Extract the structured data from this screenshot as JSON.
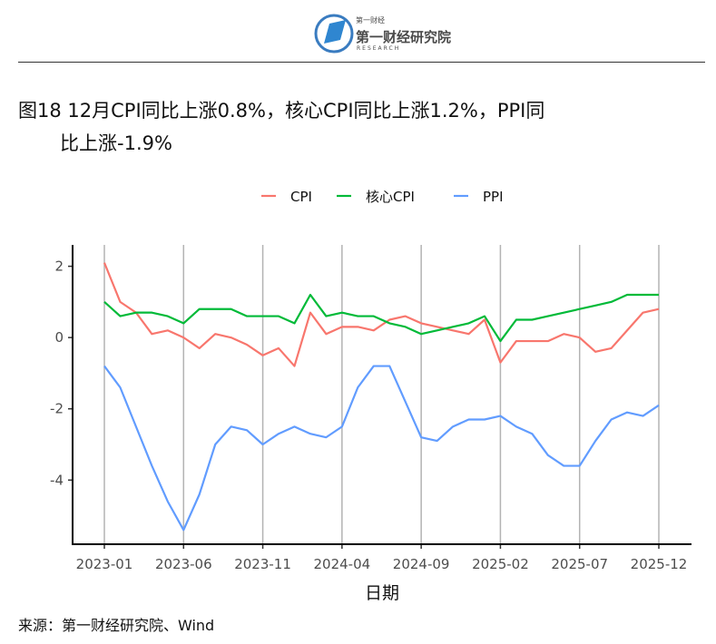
{
  "logo": {
    "name": "第一财经研究院",
    "sub": "第一财经",
    "en": "RESEARCH"
  },
  "title": {
    "line1": "图18 12月CPI同比上涨0.8%，核心CPI同比上涨1.2%，PPI同",
    "line2": "比上涨-1.9%"
  },
  "source": "来源：第一财经研究院、Wind",
  "chart_data": {
    "type": "line",
    "xlabel": "日期",
    "ylabel": "",
    "x": [
      "2023-01",
      "2023-02",
      "2023-03",
      "2023-04",
      "2023-05",
      "2023-06",
      "2023-07",
      "2023-08",
      "2023-09",
      "2023-10",
      "2023-11",
      "2023-12",
      "2024-01",
      "2024-02",
      "2024-03",
      "2024-04",
      "2024-05",
      "2024-06",
      "2024-07",
      "2024-08",
      "2024-09",
      "2024-10",
      "2024-11",
      "2024-12",
      "2025-01",
      "2025-02",
      "2025-03",
      "2025-04",
      "2025-05",
      "2025-06",
      "2025-07",
      "2025-08",
      "2025-09",
      "2025-10",
      "2025-11",
      "2025-12"
    ],
    "xticks": [
      "2023-01",
      "2023-06",
      "2023-11",
      "2024-04",
      "2024-09",
      "2025-02",
      "2025-07",
      "2025-12"
    ],
    "yticks": [
      2,
      0,
      -2,
      -4
    ],
    "ylim": [
      -5.8,
      2.6
    ],
    "grid": "vertical major lines",
    "legend": "top",
    "series": [
      {
        "name": "CPI",
        "color": "#F8766D",
        "values": [
          2.1,
          1.0,
          0.7,
          0.1,
          0.2,
          0.0,
          -0.3,
          0.1,
          0.0,
          -0.2,
          -0.5,
          -0.3,
          -0.8,
          0.7,
          0.1,
          0.3,
          0.3,
          0.2,
          0.5,
          0.6,
          0.4,
          0.3,
          0.2,
          0.1,
          0.5,
          -0.7,
          -0.1,
          -0.1,
          -0.1,
          0.1,
          0.0,
          -0.4,
          -0.3,
          0.2,
          0.7,
          0.8
        ]
      },
      {
        "name": "核心CPI",
        "color": "#00BA38",
        "values": [
          1.0,
          0.6,
          0.7,
          0.7,
          0.6,
          0.4,
          0.8,
          0.8,
          0.8,
          0.6,
          0.6,
          0.6,
          0.4,
          1.2,
          0.6,
          0.7,
          0.6,
          0.6,
          0.4,
          0.3,
          0.1,
          0.2,
          0.3,
          0.4,
          0.6,
          -0.1,
          0.5,
          0.5,
          0.6,
          0.7,
          0.8,
          0.9,
          1.0,
          1.2,
          1.2,
          1.2
        ]
      },
      {
        "name": "PPI",
        "color": "#619CFF",
        "values": [
          -0.8,
          -1.4,
          -2.5,
          -3.6,
          -4.6,
          -5.4,
          -4.4,
          -3.0,
          -2.5,
          -2.6,
          -3.0,
          -2.7,
          -2.5,
          -2.7,
          -2.8,
          -2.5,
          -1.4,
          -0.8,
          -0.8,
          -1.8,
          -2.8,
          -2.9,
          -2.5,
          -2.3,
          -2.3,
          -2.2,
          -2.5,
          -2.7,
          -3.3,
          -3.6,
          -3.6,
          -2.9,
          -2.3,
          -2.1,
          -2.2,
          -1.9
        ]
      }
    ]
  }
}
